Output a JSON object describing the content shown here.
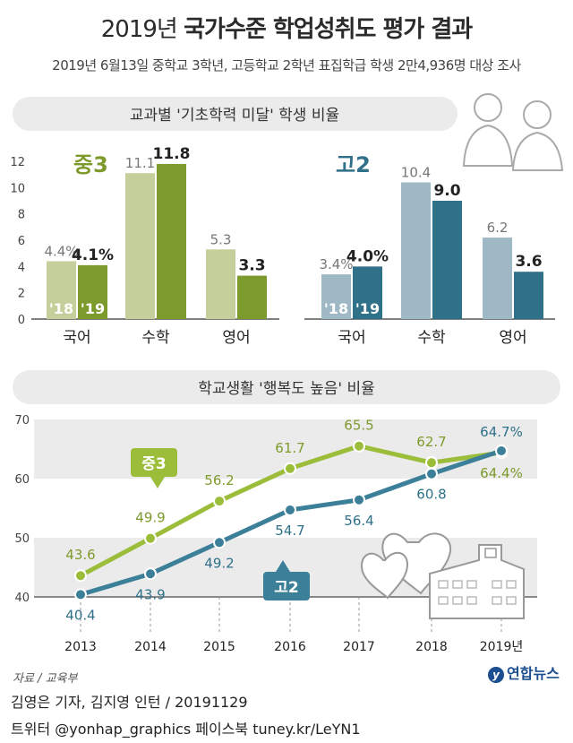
{
  "title_light": "2019년",
  "title_bold": "국가수준 학업성취도 평가 결과",
  "subtitle": "2019년 6월13일 중학교 3학년, 고등학교 2학년 표집학급 학생 2만4,936명 대상 조사",
  "source": "자료 / 교육부",
  "logo": "연합뉴스",
  "credit1": "김영은 기자, 김지영 인턴 / 20191129",
  "credit2": "트위터 @yonhap_graphics 페이스북 tuney.kr/LeYN1",
  "colors": {
    "mid_light": "#c5cf9c",
    "mid_dark": "#7d9a2c",
    "mid_line": "#9bbd3a",
    "high_light": "#9fb8c6",
    "high_dark": "#2f7189",
    "high_line": "#3b7f98",
    "banner": "#ebebeb"
  },
  "chart_data": [
    {
      "type": "bar",
      "title": "교과별 '기초학력 미달' 학생 비율",
      "group_label": "중3",
      "categories": [
        "국어",
        "수학",
        "영어"
      ],
      "ylim": [
        0,
        12
      ],
      "yticks": [
        "0",
        "2",
        "4",
        "6",
        "8",
        "10",
        "12"
      ],
      "series": [
        {
          "name": "'18",
          "values": [
            4.4,
            11.1,
            5.3
          ],
          "labels": [
            "4.4%",
            "11.1",
            "5.3"
          ]
        },
        {
          "name": "'19",
          "values": [
            4.1,
            11.8,
            3.3
          ],
          "labels": [
            "4.1%",
            "11.8",
            "3.3"
          ]
        }
      ]
    },
    {
      "type": "bar",
      "group_label": "고2",
      "categories": [
        "국어",
        "수학",
        "영어"
      ],
      "ylim": [
        0,
        12
      ],
      "series": [
        {
          "name": "'18",
          "values": [
            3.4,
            10.4,
            6.2
          ],
          "labels": [
            "3.4%",
            "10.4",
            "6.2"
          ]
        },
        {
          "name": "'19",
          "values": [
            4.0,
            9.0,
            3.6
          ],
          "labels": [
            "4.0%",
            "9.0",
            "3.6"
          ]
        }
      ]
    },
    {
      "type": "line",
      "title": "학교생활 '행복도 높음' 비율",
      "x": [
        "2013",
        "2014",
        "2015",
        "2016",
        "2017",
        "2018",
        "2019년"
      ],
      "ylim": [
        40,
        70
      ],
      "yticks": [
        "40",
        "50",
        "60",
        "70"
      ],
      "series": [
        {
          "name": "중3",
          "values": [
            43.6,
            49.9,
            56.2,
            61.7,
            65.5,
            62.7,
            64.4
          ],
          "labels": [
            "43.6",
            "49.9",
            "56.2",
            "61.7",
            "65.5",
            "62.7",
            "64.4%"
          ]
        },
        {
          "name": "고2",
          "values": [
            40.4,
            43.9,
            49.2,
            54.7,
            56.4,
            60.8,
            64.7
          ],
          "labels": [
            "40.4",
            "43.9",
            "49.2",
            "54.7",
            "56.4",
            "60.8",
            "64.7%"
          ]
        }
      ]
    }
  ]
}
